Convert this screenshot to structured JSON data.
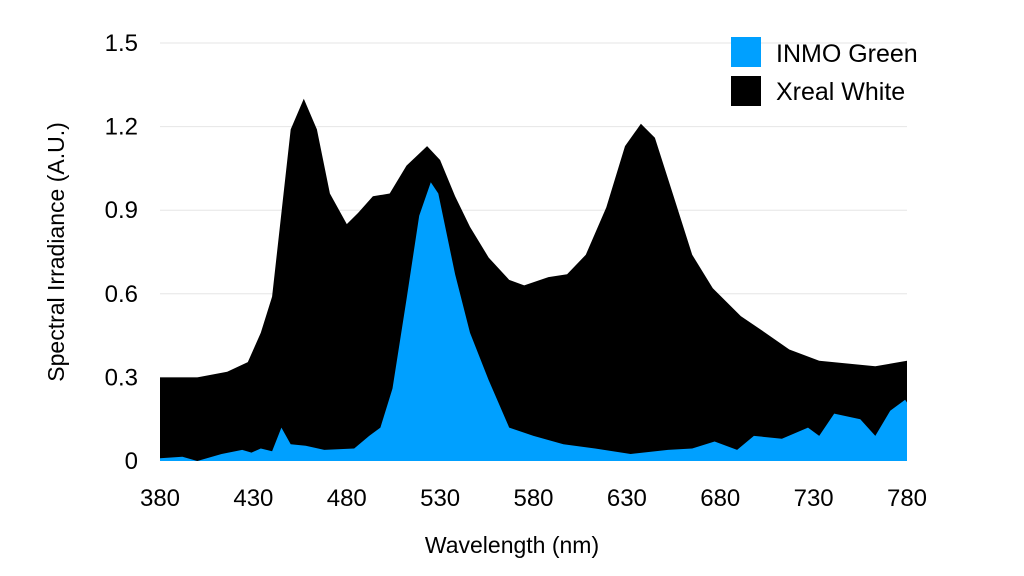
{
  "chart_data": {
    "type": "area",
    "title": "",
    "xlabel": "Wavelength (nm)",
    "ylabel": "Spectral Irradiance (A.U.)",
    "xlim": [
      380,
      780
    ],
    "ylim": [
      0,
      1.5
    ],
    "xticks": [
      "380",
      "430",
      "480",
      "530",
      "580",
      "630",
      "680",
      "730",
      "780"
    ],
    "yticks": [
      "0",
      "0.3",
      "0.6",
      "0.9",
      "1.2",
      "1.5"
    ],
    "grid": true,
    "legend_position": "top-right",
    "series": [
      {
        "name": "Xreal White",
        "color": "#000000",
        "x": [
          380,
          390,
          400,
          416,
          427,
          434,
          440,
          445,
          450,
          457,
          464,
          471,
          480,
          486,
          494,
          503,
          512,
          523,
          530,
          538,
          546,
          556,
          567,
          575,
          588,
          598,
          608,
          619,
          629,
          637.5,
          645,
          655,
          665,
          676,
          691,
          702,
          717,
          733,
          748,
          763,
          780
        ],
        "y": [
          0.3,
          0.3,
          0.3,
          0.32,
          0.355,
          0.46,
          0.59,
          0.89,
          1.19,
          1.3,
          1.19,
          0.96,
          0.85,
          0.89,
          0.95,
          0.96,
          1.06,
          1.13,
          1.08,
          0.95,
          0.84,
          0.73,
          0.65,
          0.63,
          0.66,
          0.67,
          0.74,
          0.91,
          1.13,
          1.21,
          1.16,
          0.95,
          0.74,
          0.62,
          0.52,
          0.47,
          0.4,
          0.36,
          0.35,
          0.34,
          0.36
        ]
      },
      {
        "name": "INMO Green",
        "color": "#00A0FF",
        "x": [
          380,
          392,
          400,
          413,
          424,
          429,
          434,
          440,
          445,
          450,
          458,
          468,
          484,
          492,
          498,
          504.5,
          512,
          518.8,
          525,
          529,
          538,
          546,
          556,
          567,
          580,
          596,
          613,
          632,
          652,
          665,
          677,
          689,
          698,
          713,
          727,
          733,
          741,
          755,
          763,
          771,
          779,
          780
        ],
        "y": [
          0.01,
          0.015,
          0.0,
          0.025,
          0.04,
          0.03,
          0.045,
          0.035,
          0.12,
          0.06,
          0.055,
          0.04,
          0.045,
          0.09,
          0.12,
          0.26,
          0.58,
          0.88,
          1.0,
          0.96,
          0.67,
          0.46,
          0.29,
          0.12,
          0.09,
          0.06,
          0.045,
          0.025,
          0.04,
          0.045,
          0.07,
          0.04,
          0.09,
          0.08,
          0.12,
          0.09,
          0.17,
          0.15,
          0.09,
          0.18,
          0.22,
          0.21
        ]
      }
    ]
  }
}
